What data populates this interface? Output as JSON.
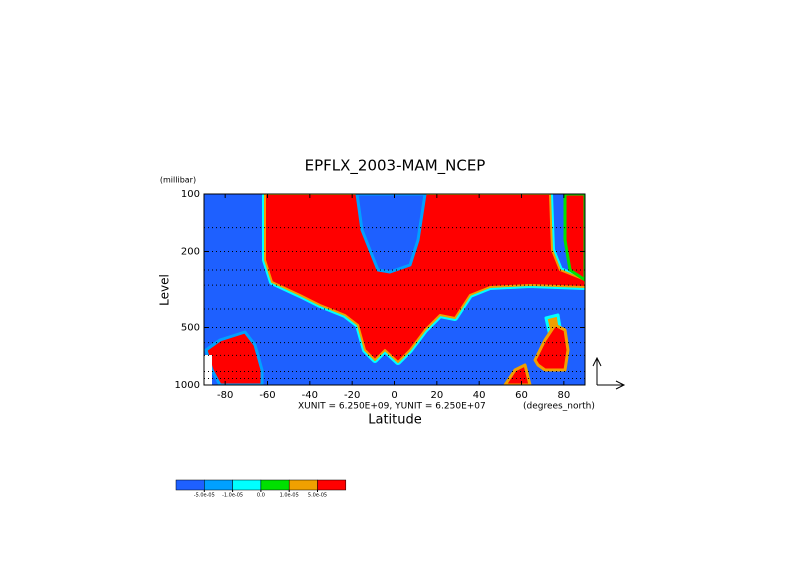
{
  "chart_data": {
    "type": "contour",
    "title": "EPFLX_2003-MAM_NCEP",
    "y_unit_label": "(millibar)",
    "y_label": "Level",
    "x_label": "Latitude",
    "vector_units": "XUNIT = 6.250E+09, YUNIT = 6.250E+07",
    "x_unit_label": "(degrees_north)",
    "xlim": [
      -90,
      90
    ],
    "xticks": [
      -80,
      -60,
      -40,
      -20,
      0,
      20,
      40,
      60,
      80
    ],
    "ylim": [
      1000,
      100
    ],
    "yticks": [
      100,
      200,
      500,
      1000
    ],
    "y_log": true,
    "levels": [
      1000,
      925,
      850,
      700,
      600,
      500,
      400,
      300,
      250,
      200,
      150,
      100
    ],
    "colorbar": {
      "colors": [
        "#1e60ff",
        "#00a0ff",
        "#00ffff",
        "#00e000",
        "#f0a000",
        "#ff0000"
      ],
      "ticks": [
        {
          "value": -5e-05,
          "label": "-5.0e-05"
        },
        {
          "value": -1e-05,
          "label": "-1.0e-05"
        },
        {
          "value": 0,
          "label": "0.0"
        },
        {
          "value": 1e-05,
          "label": "1.0e-05"
        },
        {
          "value": 5e-05,
          "label": "5.0e-05"
        }
      ]
    }
  }
}
